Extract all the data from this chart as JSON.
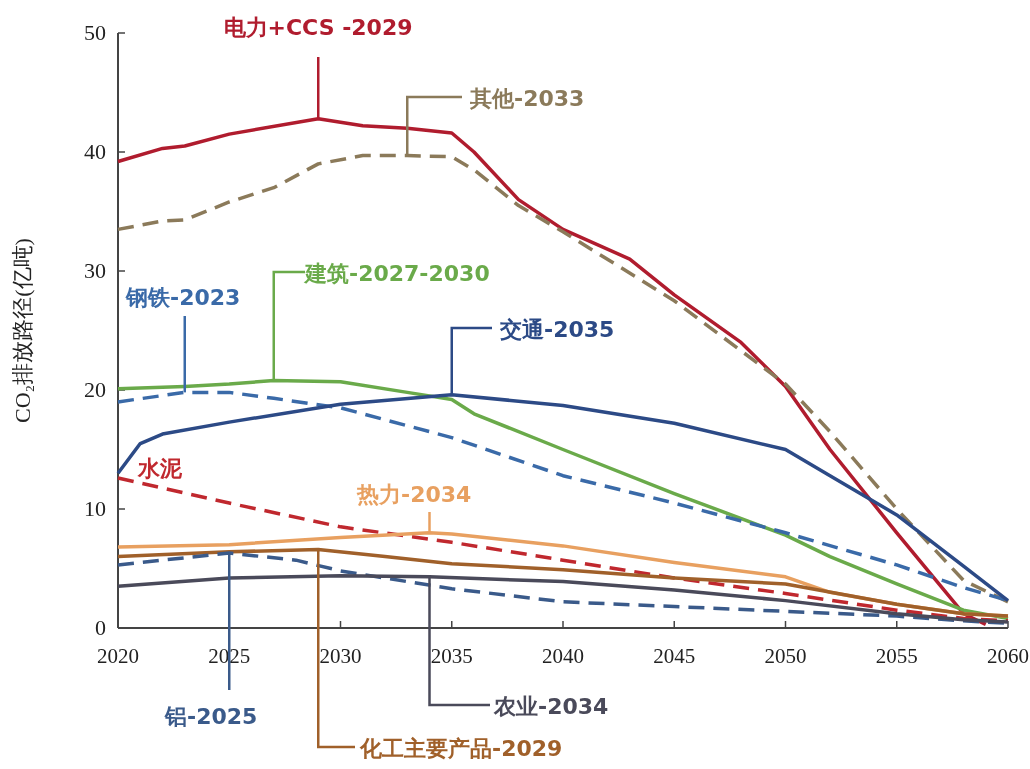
{
  "chart_data": {
    "type": "line",
    "ylabel": "CO₂排放路径(亿吨)",
    "xlim": [
      2020,
      2060
    ],
    "xticks": [
      2020,
      2025,
      2030,
      2035,
      2040,
      2045,
      2050,
      2055,
      2060
    ],
    "ylim": [
      0,
      50
    ],
    "yticks": [
      0,
      10,
      20,
      30,
      40,
      50
    ],
    "grid": false,
    "marker": "none",
    "series": [
      {
        "color": "#b01c2e",
        "line_style": "solid",
        "x": [
          2020,
          2022,
          2023,
          2025,
          2029,
          2031,
          2033,
          2035,
          2036,
          2038,
          2040,
          2043,
          2045,
          2048,
          2050,
          2052,
          2055,
          2058,
          2059
        ],
        "values": [
          39.2,
          40.3,
          40.5,
          41.5,
          42.8,
          42.2,
          42,
          41.6,
          40,
          36,
          33.5,
          31,
          28,
          24,
          20.3,
          15,
          8,
          1.2,
          0.3
        ]
      },
      {
        "color": "#8b7a5a",
        "line_style": "dashed",
        "x": [
          2020,
          2022,
          2023,
          2025,
          2027,
          2029,
          2031,
          2033,
          2035,
          2036,
          2038,
          2040,
          2045,
          2050,
          2052,
          2055,
          2058,
          2060
        ],
        "values": [
          33.5,
          34.2,
          34.3,
          35.8,
          37,
          39,
          39.7,
          39.7,
          39.6,
          38.5,
          35.5,
          33.3,
          27.5,
          20.5,
          16.5,
          10,
          4,
          2.2
        ]
      },
      {
        "color": "#6aaa4a",
        "line_style": "solid",
        "x": [
          2020,
          2023,
          2025,
          2027,
          2030,
          2033,
          2035,
          2036,
          2040,
          2045,
          2050,
          2052,
          2055,
          2058,
          2060
        ],
        "values": [
          20.1,
          20.3,
          20.5,
          20.8,
          20.7,
          19.8,
          19.2,
          18,
          15,
          11.3,
          7.8,
          6,
          3.7,
          1.5,
          0.8
        ]
      },
      {
        "color": "#3a6aa8",
        "line_style": "dashed",
        "x": [
          2020,
          2023,
          2025,
          2027,
          2030,
          2035,
          2040,
          2045,
          2050,
          2055,
          2058,
          2060
        ],
        "values": [
          19,
          19.8,
          19.8,
          19.3,
          18.5,
          16,
          12.8,
          10.5,
          8,
          5.3,
          3.4,
          2.3
        ]
      },
      {
        "color": "#2c4a86",
        "line_style": "solid",
        "x": [
          2020,
          2021,
          2022,
          2025,
          2030,
          2035,
          2040,
          2045,
          2050,
          2052,
          2055,
          2058,
          2060
        ],
        "values": [
          13,
          15.5,
          16.3,
          17.3,
          18.8,
          19.6,
          18.7,
          17.2,
          15,
          12.8,
          9.5,
          5.2,
          2.3
        ]
      },
      {
        "color": "#c0282e",
        "line_style": "dashed",
        "x": [
          2020,
          2025,
          2030,
          2035,
          2040,
          2045,
          2050,
          2055,
          2058,
          2060
        ],
        "values": [
          12.6,
          10.5,
          8.5,
          7.2,
          5.7,
          4.2,
          2.9,
          1.5,
          0.8,
          0.6
        ]
      },
      {
        "color": "#e8a060",
        "line_style": "solid",
        "x": [
          2020,
          2025,
          2030,
          2034,
          2035,
          2040,
          2045,
          2050,
          2052,
          2055,
          2058,
          2060
        ],
        "values": [
          6.8,
          7,
          7.6,
          8,
          7.9,
          6.9,
          5.5,
          4.3,
          3,
          2,
          1.2,
          1
        ]
      },
      {
        "color": "#a0602a",
        "line_style": "solid",
        "x": [
          2020,
          2025,
          2029,
          2032,
          2035,
          2040,
          2045,
          2050,
          2055,
          2058,
          2060
        ],
        "values": [
          6,
          6.4,
          6.6,
          6,
          5.4,
          4.9,
          4.2,
          3.7,
          2,
          1.2,
          1
        ]
      },
      {
        "color": "#3a5a8a",
        "line_style": "dashed",
        "x": [
          2020,
          2025,
          2028,
          2030,
          2035,
          2040,
          2045,
          2050,
          2055,
          2058,
          2060
        ],
        "values": [
          5.3,
          6.3,
          5.7,
          4.8,
          3.3,
          2.2,
          1.8,
          1.4,
          1,
          0.6,
          0.4
        ]
      },
      {
        "color": "#4a4a5a",
        "line_style": "solid",
        "x": [
          2020,
          2025,
          2030,
          2034,
          2040,
          2045,
          2050,
          2055,
          2058,
          2060
        ],
        "values": [
          3.5,
          4.2,
          4.4,
          4.3,
          3.9,
          3.2,
          2.3,
          1.2,
          0.7,
          0.5
        ]
      }
    ],
    "annotations": [
      {
        "text": "电力+CCS -2029",
        "x": 2029,
        "y": 42.8
      },
      {
        "text": "其他-2033",
        "x": 2033,
        "y": 39.7
      },
      {
        "text": "建筑-2027-2030",
        "x": 2027,
        "y": 20.8
      },
      {
        "text": "钢铁-2023",
        "x": 2023,
        "y": 19.8
      },
      {
        "text": "交通-2035",
        "x": 2035,
        "y": 19.6
      },
      {
        "text": "水泥",
        "x": 2020,
        "y": 12.6
      },
      {
        "text": "热力-2034",
        "x": 2034,
        "y": 8
      },
      {
        "text": "铝-2025",
        "x": 2025,
        "y": 6.3
      },
      {
        "text": "化工主要产品-2029",
        "x": 2029,
        "y": 6.6
      },
      {
        "text": "农业-2034",
        "x": 2034,
        "y": 4.3
      }
    ]
  }
}
